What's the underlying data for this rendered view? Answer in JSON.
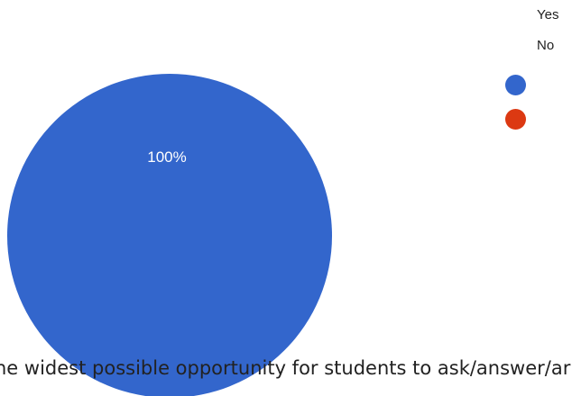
{
  "chart_data": {
    "type": "pie",
    "categories": [
      "Yes",
      "No"
    ],
    "values": [
      100,
      0
    ],
    "slice_labels": [
      "100%",
      ""
    ],
    "colors": [
      "#3366cc",
      "#dc3912"
    ],
    "legend": {
      "entries": [
        "Yes",
        "No"
      ],
      "placement": "top-right"
    }
  },
  "caption": "he widest possible opportunity for students to ask/answer/ar"
}
